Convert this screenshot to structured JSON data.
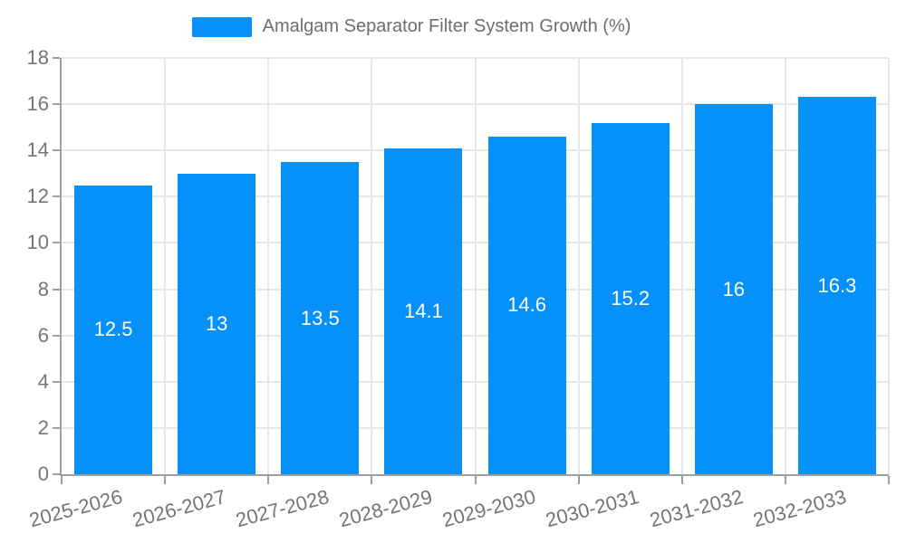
{
  "chart_data": {
    "type": "bar",
    "title": "Amalgam Separator Filter System Growth (%)",
    "legend": {
      "label": "Amalgam Separator Filter System Growth (%)",
      "position": "top-center"
    },
    "categories": [
      "2025-2026",
      "2026-2027",
      "2027-2028",
      "2028-2029",
      "2029-2030",
      "2030-2031",
      "2031-2032",
      "2032-2033"
    ],
    "values": [
      12.5,
      13,
      13.5,
      14.1,
      14.6,
      15.2,
      16,
      16.3
    ],
    "value_labels": [
      "12.5",
      "13",
      "13.5",
      "14.1",
      "14.6",
      "15.2",
      "16",
      "16.3"
    ],
    "xlabel": "",
    "ylabel": "",
    "ylim": [
      0,
      18
    ],
    "ytick_step": 2,
    "ytick_labels": [
      "0",
      "2",
      "4",
      "6",
      "8",
      "10",
      "12",
      "14",
      "16",
      "18"
    ],
    "grid": true,
    "value_label_position": "inside-center",
    "xlabel_rotation_deg": -15,
    "colors": {
      "bar": "#0590FA",
      "axis": "#9E9E9E",
      "gridline": "#E7E7E7",
      "axis_text": "#757575",
      "legend_text": "#6E6E6E",
      "value_text": "#FFFFFF",
      "background": "#FFFFFF"
    }
  }
}
